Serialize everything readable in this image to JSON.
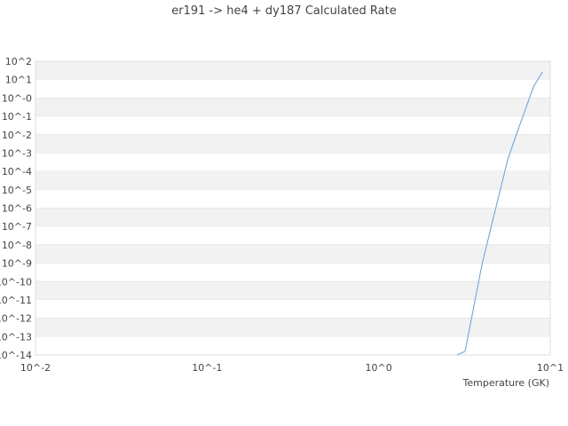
{
  "chart_data": {
    "type": "line",
    "title": "er191 -> he4 + dy187 Calculated Rate",
    "xlabel": "Temperature (GK)",
    "ylabel": "",
    "xscale": "log",
    "yscale": "log",
    "xlim": [
      0.01,
      10
    ],
    "ylim": [
      1e-14,
      100
    ],
    "grid": "horizontal alternating bands",
    "x_ticks": [
      "10^-2",
      "10^-1",
      "10^0",
      "10^1"
    ],
    "y_ticks": [
      "10^2",
      "10^1",
      "10^-0",
      "10^-1",
      "10^-2",
      "10^-3",
      "10^-4",
      "10^-5",
      "10^-6",
      "10^-7",
      "10^-8",
      "10^-9",
      "10^-10",
      "10^-11",
      "10^-12",
      "10^-13",
      "10^-14"
    ],
    "series": [
      {
        "color": "#5aa0f0",
        "x": [
          2.87,
          3.19,
          4.0,
          4.56,
          5.65,
          6.44,
          7.98,
          9.0
        ],
        "y": [
          1e-14,
          1.6e-14,
          8.7e-10,
          1.3e-07,
          0.00044,
          0.015,
          4.0,
          26
        ]
      }
    ]
  }
}
